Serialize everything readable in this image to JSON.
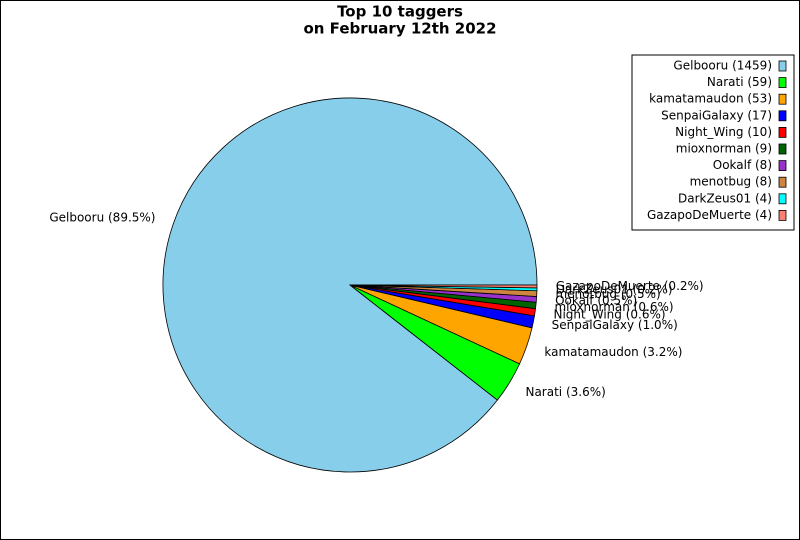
{
  "chart_data": {
    "type": "pie",
    "title": [
      "Top 10 taggers",
      "on February 12th 2022"
    ],
    "values": [
      1459,
      59,
      53,
      17,
      10,
      9,
      8,
      8,
      4,
      4
    ],
    "slice_labels": [
      "Gelbooru (89.5%)",
      "Narati (3.6%)",
      "kamatamaudon (3.2%)",
      "SenpaiGalaxy (1.0%)",
      "Night_Wing (0.6%)",
      "mioxnorman (0.6%)",
      "Ookalf (0.5%)",
      "menotbug (0.5%)",
      "DarkZeus01 (0.2%)",
      "GazapoDeMuerte (0.2%)"
    ],
    "legend_labels": [
      "Gelbooru (1459)",
      "Narati (59)",
      "kamatamaudon (53)",
      "SenpaiGalaxy (17)",
      "Night_Wing (10)",
      "mioxnorman (9)",
      "Ookalf (8)",
      "menotbug (8)",
      "DarkZeus01 (4)",
      "GazapoDeMuerte (4)"
    ],
    "colors": [
      "#87ceeb",
      "#00ff00",
      "#ffa500",
      "#0000ff",
      "#ff0000",
      "#006400",
      "#9932cc",
      "#cd853f",
      "#00ffff",
      "#fa8072"
    ],
    "legend": "upper right"
  }
}
